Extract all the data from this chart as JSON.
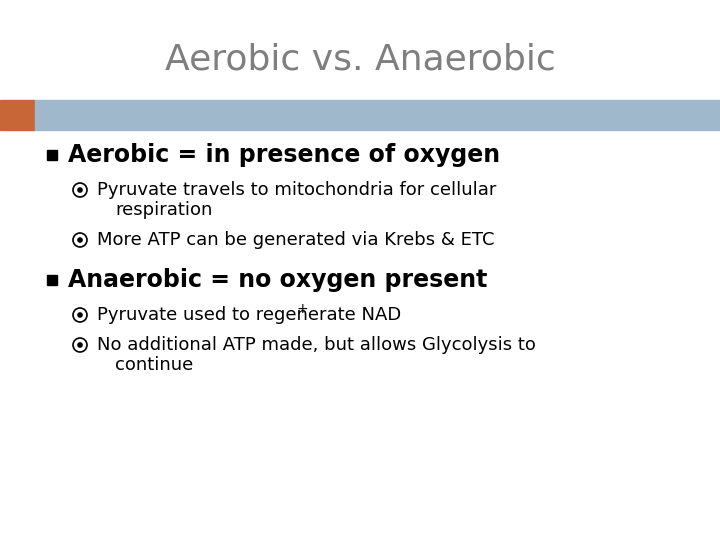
{
  "title": "Aerobic vs. Anaerobic",
  "title_color": "#7f7f7f",
  "title_fontsize": 26,
  "bg_color": "#ffffff",
  "header_bar_color": "#9fb8cc",
  "header_bar_left_color": "#c86637",
  "bullet1_text": "Aerobic = in presence of oxygen",
  "bullet1_fontsize": 17,
  "sub1a_line1": "Pyruvate travels to mitochondria for cellular",
  "sub1a_line2": "respiration",
  "sub1b_text": "More ATP can be generated via Krebs & ETC",
  "sub_fontsize": 13,
  "bullet2_text": "Anaerobic = no oxygen present",
  "bullet2_fontsize": 17,
  "sub2a_base": "Pyruvate used to regenerate NAD",
  "sub2a_sup": "+",
  "sub2b_line1": "No additional ATP made, but allows Glycolysis to",
  "sub2b_line2": "continue",
  "bullet_square_color": "#000000",
  "sub_circle_color": "#000000",
  "text_color": "#000000"
}
